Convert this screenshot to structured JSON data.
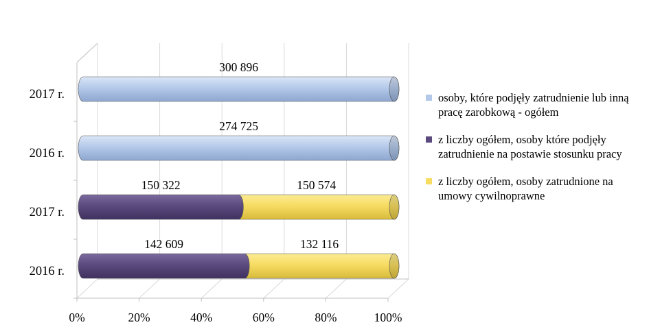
{
  "chart_data": {
    "type": "bar",
    "orientation": "horizontal",
    "stacked": "percent",
    "categories": [
      "2016 r.",
      "2017 r.",
      "2016 r.",
      "2017 r."
    ],
    "series": [
      {
        "name": "osoby, które podjęły zatrudnienie lub inną pracę zarobkową - ogółem",
        "color": "#b4c9ea",
        "values": [
          null,
          null,
          274725,
          300896
        ],
        "labels": [
          "",
          "",
          "274 725",
          "300 896"
        ]
      },
      {
        "name": "z liczby ogółem, osoby które podjęły zatrudnienie na postawie stosunku pracy",
        "color": "#5b4a7e",
        "values": [
          142609,
          150322,
          null,
          null
        ],
        "labels": [
          "142 609",
          "150 322",
          "",
          ""
        ]
      },
      {
        "name": "z liczby ogółem, osoby zatrudnione na umowy cywilnoprawne",
        "color": "#f7dc62",
        "values": [
          132116,
          150574,
          null,
          null
        ],
        "labels": [
          "132 116",
          "150 574",
          "",
          ""
        ]
      }
    ],
    "x_ticks": [
      "0%",
      "20%",
      "40%",
      "60%",
      "80%",
      "100%"
    ],
    "xlim": [
      0,
      100
    ],
    "legend": "right",
    "grid": true
  }
}
